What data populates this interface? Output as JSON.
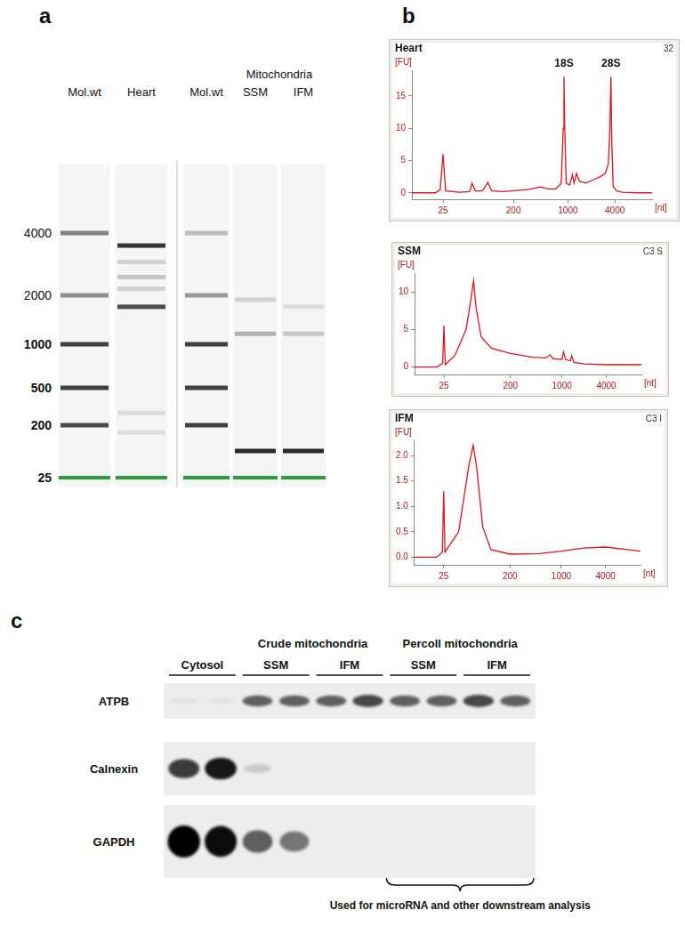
{
  "panel_labels": [
    "a",
    "b",
    "c"
  ],
  "gel": {
    "ladder_labels": [
      4000,
      2000,
      1000,
      500,
      200,
      25
    ],
    "marker_band": {
      "nt": 25,
      "color": "#2a9d3a"
    },
    "lanes": [
      {
        "name": "Mol.wt",
        "bands": [
          {
            "nt": 4000,
            "intensity": 0.55
          },
          {
            "nt": 2000,
            "intensity": 0.5
          },
          {
            "nt": 1000,
            "intensity": 0.85
          },
          {
            "nt": 500,
            "intensity": 0.85
          },
          {
            "nt": 200,
            "intensity": 0.8
          }
        ]
      },
      {
        "name": "Heart",
        "bands": [
          {
            "nt": 3480,
            "intensity": 0.9
          },
          {
            "nt": 2900,
            "intensity": 0.2
          },
          {
            "nt": 2450,
            "intensity": 0.25
          },
          {
            "nt": 2150,
            "intensity": 0.2
          },
          {
            "nt": 1700,
            "intensity": 0.8
          },
          {
            "nt": 270,
            "intensity": 0.15
          },
          {
            "nt": 150,
            "intensity": 0.15
          }
        ]
      },
      {
        "name": "Mol.wt",
        "bands": [
          {
            "nt": 4000,
            "intensity": 0.3
          },
          {
            "nt": 2000,
            "intensity": 0.45
          },
          {
            "nt": 1000,
            "intensity": 0.85
          },
          {
            "nt": 500,
            "intensity": 0.85
          },
          {
            "nt": 200,
            "intensity": 0.85
          }
        ]
      },
      {
        "group": "Mitochondria",
        "name": "SSM",
        "bands": [
          {
            "nt": 1880,
            "intensity": 0.2
          },
          {
            "nt": 1160,
            "intensity": 0.35
          },
          {
            "nt": 72,
            "intensity": 0.95
          }
        ]
      },
      {
        "group": "Mitochondria",
        "name": "IFM",
        "bands": [
          {
            "nt": 1700,
            "intensity": 0.15
          },
          {
            "nt": 1160,
            "intensity": 0.25
          },
          {
            "nt": 72,
            "intensity": 0.95
          }
        ]
      }
    ]
  },
  "chart_data": [
    {
      "type": "line",
      "title": "Heart",
      "subtitle": "32",
      "x_label": "[nt]",
      "y_label": "[FU]",
      "x": [
        10,
        20,
        23,
        25,
        27,
        40,
        55,
        59,
        65,
        80,
        94,
        105,
        150,
        300,
        450,
        550,
        700,
        820,
        870,
        890,
        910,
        950,
        1050,
        1140,
        1200,
        1285,
        1400,
        1700,
        2100,
        2600,
        3000,
        3300,
        3450,
        3560,
        3650,
        3800,
        4200,
        5000,
        8000,
        12000
      ],
      "values": [
        0,
        0,
        0.5,
        6,
        0.3,
        0.1,
        0.2,
        1.5,
        0.3,
        0.3,
        1.6,
        0.3,
        0.2,
        0.5,
        0.9,
        0.6,
        0.6,
        1.5,
        10,
        18,
        10,
        1.5,
        1.2,
        2.8,
        1.5,
        3.0,
        1.8,
        1.5,
        2.0,
        2.5,
        3.0,
        4.5,
        10,
        18,
        8,
        1.0,
        0.3,
        0.1,
        0,
        0
      ],
      "color": "#e3121b",
      "log": "x",
      "grid": false,
      "xlim": [
        10,
        12000
      ],
      "xticks": [
        25,
        200,
        1000,
        4000
      ],
      "ylim": [
        -1,
        19
      ],
      "yticks": [
        0,
        5,
        10,
        15
      ],
      "annotations": [
        {
          "text": "18S",
          "x": 890
        },
        {
          "text": "28S",
          "x": 3560
        }
      ]
    },
    {
      "type": "line",
      "title": "SSM",
      "subtitle": "C3 S",
      "x_label": "[nt]",
      "y_label": "[FU]",
      "x": [
        10,
        20,
        24,
        25,
        26,
        35,
        50,
        58,
        63,
        68,
        80,
        110,
        200,
        400,
        600,
        690,
        760,
        1000,
        1050,
        1120,
        1300,
        1360,
        1450,
        2000,
        4000,
        12000
      ],
      "values": [
        0,
        0,
        0.5,
        5.5,
        0.3,
        1.5,
        5,
        9,
        11.5,
        8,
        4,
        2.5,
        1.8,
        1.3,
        1.2,
        1.6,
        1.1,
        1.0,
        2.0,
        1.0,
        0.8,
        1.5,
        0.6,
        0.4,
        0.3,
        0.3
      ],
      "color": "#e3121b",
      "log": "x",
      "grid": false,
      "xlim": [
        10,
        12000
      ],
      "xticks": [
        25,
        200,
        1000,
        4000
      ],
      "ylim": [
        -1,
        12.5
      ],
      "yticks": [
        0,
        5,
        10
      ]
    },
    {
      "type": "line",
      "title": "IFM",
      "subtitle": "C3 I",
      "x_label": "[nt]",
      "y_label": "[FU]",
      "x": [
        10,
        20,
        24,
        25,
        26,
        40,
        55,
        63,
        70,
        85,
        110,
        200,
        500,
        1000,
        2000,
        4000,
        8000,
        12000
      ],
      "values": [
        0,
        0,
        0.1,
        1.3,
        0.1,
        0.5,
        1.8,
        2.2,
        1.8,
        0.6,
        0.15,
        0.06,
        0.07,
        0.12,
        0.18,
        0.2,
        0.15,
        0.12
      ],
      "color": "#e3121b",
      "log": "x",
      "grid": false,
      "xlim": [
        10,
        12000
      ],
      "xticks": [
        25,
        200,
        1000,
        4000
      ],
      "ylim": [
        -0.15,
        2.3
      ],
      "yticks": [
        {
          "value": 0,
          "label": "0.0"
        },
        {
          "value": 0.5,
          "label": "0.5"
        },
        {
          "value": 1,
          "label": "1.0"
        },
        {
          "value": 1.5,
          "label": "1.5"
        },
        {
          "value": 2,
          "label": "2.0"
        }
      ]
    }
  ],
  "blot": {
    "columns": [
      {
        "label": "Cytosol"
      },
      {
        "group": "Crude mitochondria",
        "label": "SSM"
      },
      {
        "group": "Crude mitochondria",
        "label": "IFM"
      },
      {
        "group": "Percoll mitochondria",
        "label": "SSM"
      },
      {
        "group": "Percoll mitochondria",
        "label": "IFM"
      }
    ],
    "rows": [
      {
        "name": "ATPB",
        "bands": [
          [
            0.05,
            0.05
          ],
          [
            0.6,
            0.6
          ],
          [
            0.6,
            0.7
          ],
          [
            0.6,
            0.6
          ],
          [
            0.7,
            0.6
          ]
        ]
      },
      {
        "name": "Calnexin",
        "bands": [
          [
            0.75,
            0.9
          ],
          [
            0.15,
            0
          ],
          [
            0,
            0
          ],
          [
            0,
            0
          ],
          [
            0,
            0
          ]
        ]
      },
      {
        "name": "GAPDH",
        "bands": [
          [
            1,
            0.95
          ],
          [
            0.6,
            0.5
          ],
          [
            0,
            0
          ],
          [
            0,
            0
          ],
          [
            0,
            0
          ]
        ]
      }
    ],
    "bracket": {
      "group": "Percoll mitochondria",
      "text": "Used for microRNA and other downstream analysis"
    }
  }
}
